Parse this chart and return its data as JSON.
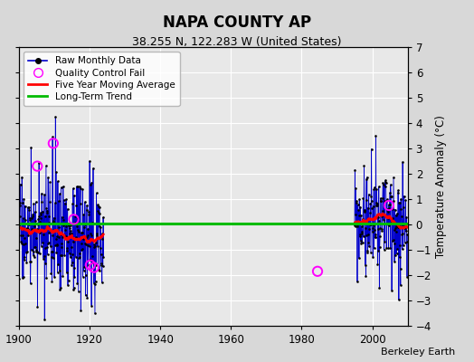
{
  "title": "NAPA COUNTY AP",
  "subtitle": "38.255 N, 122.283 W (United States)",
  "ylabel": "Temperature Anomaly (°C)",
  "credit": "Berkeley Earth",
  "xlim": [
    1900,
    2010
  ],
  "ylim": [
    -4,
    7
  ],
  "yticks": [
    -4,
    -3,
    -2,
    -1,
    0,
    1,
    2,
    3,
    4,
    5,
    6,
    7
  ],
  "xticks": [
    1900,
    1920,
    1940,
    1960,
    1980,
    2000
  ],
  "bg_color": "#d8d8d8",
  "plot_bg_color": "#e8e8e8",
  "grid_color": "#ffffff",
  "raw_line_color": "#0000cc",
  "raw_dot_color": "#000000",
  "qc_fail_color": "#ff00ff",
  "moving_avg_color": "#ff0000",
  "trend_color": "#00bb00",
  "trend_value": 0.05,
  "seg1_start": 1900.0,
  "seg1_end": 1924.0,
  "seg2_start": 1995.0,
  "seg2_end": 2010.0
}
